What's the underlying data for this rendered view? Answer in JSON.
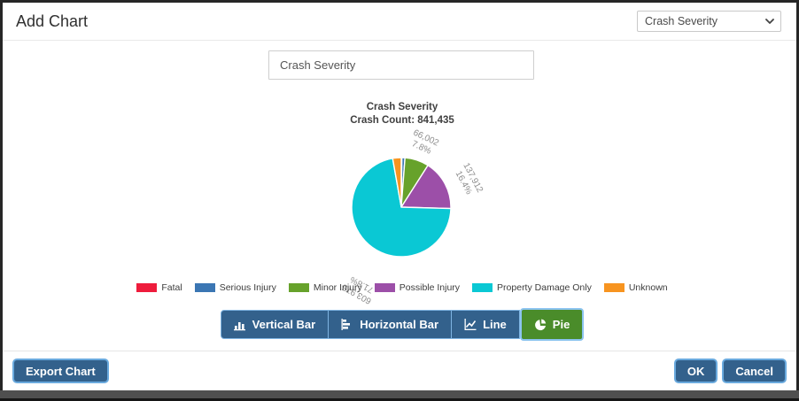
{
  "header": {
    "title": "Add Chart",
    "field_dropdown": {
      "selected": "Crash Severity"
    }
  },
  "chart_title_input": {
    "value": "Crash Severity"
  },
  "chart_data": {
    "type": "pie",
    "title": "Crash Severity",
    "subtitle": "Crash Count: 841,435",
    "total": 841435,
    "legend_position": "bottom",
    "series": [
      {
        "name": "Fatal",
        "value": 1700,
        "color": "#ee1c3c",
        "labeled": false,
        "estimated": true
      },
      {
        "name": "Serious Injury",
        "value": 8400,
        "color": "#3b76b3",
        "labeled": false,
        "estimated": true
      },
      {
        "name": "Minor Injury",
        "value": 66002,
        "color": "#67a22b",
        "labeled": true,
        "label": "66,002",
        "percent_label": "7.8%"
      },
      {
        "name": "Possible Injury",
        "value": 137912,
        "color": "#9c4fa8",
        "labeled": true,
        "label": "137,912",
        "percent_label": "16.4%"
      },
      {
        "name": "Property Damage Only",
        "value": 603975,
        "color": "#0ac8d4",
        "labeled": true,
        "label": "603,975",
        "percent_label": "71.8%"
      },
      {
        "name": "Unknown",
        "value": 23446,
        "color": "#f79420",
        "labeled": false,
        "estimated": true
      }
    ]
  },
  "chart_type_buttons": [
    {
      "label": "Vertical Bar",
      "icon": "vertical-bar-icon",
      "selected": false
    },
    {
      "label": "Horizontal Bar",
      "icon": "horizontal-bar-icon",
      "selected": false
    },
    {
      "label": "Line",
      "icon": "line-chart-icon",
      "selected": false
    },
    {
      "label": "Pie",
      "icon": "pie-chart-icon",
      "selected": true
    }
  ],
  "footer": {
    "export_label": "Export Chart",
    "ok_label": "OK",
    "cancel_label": "Cancel"
  },
  "colors": {
    "primary_button": "#33618c",
    "button_border": "#6aaade",
    "selected_type_button": "#4a8c2a",
    "backdrop": "#4f4f4f"
  }
}
